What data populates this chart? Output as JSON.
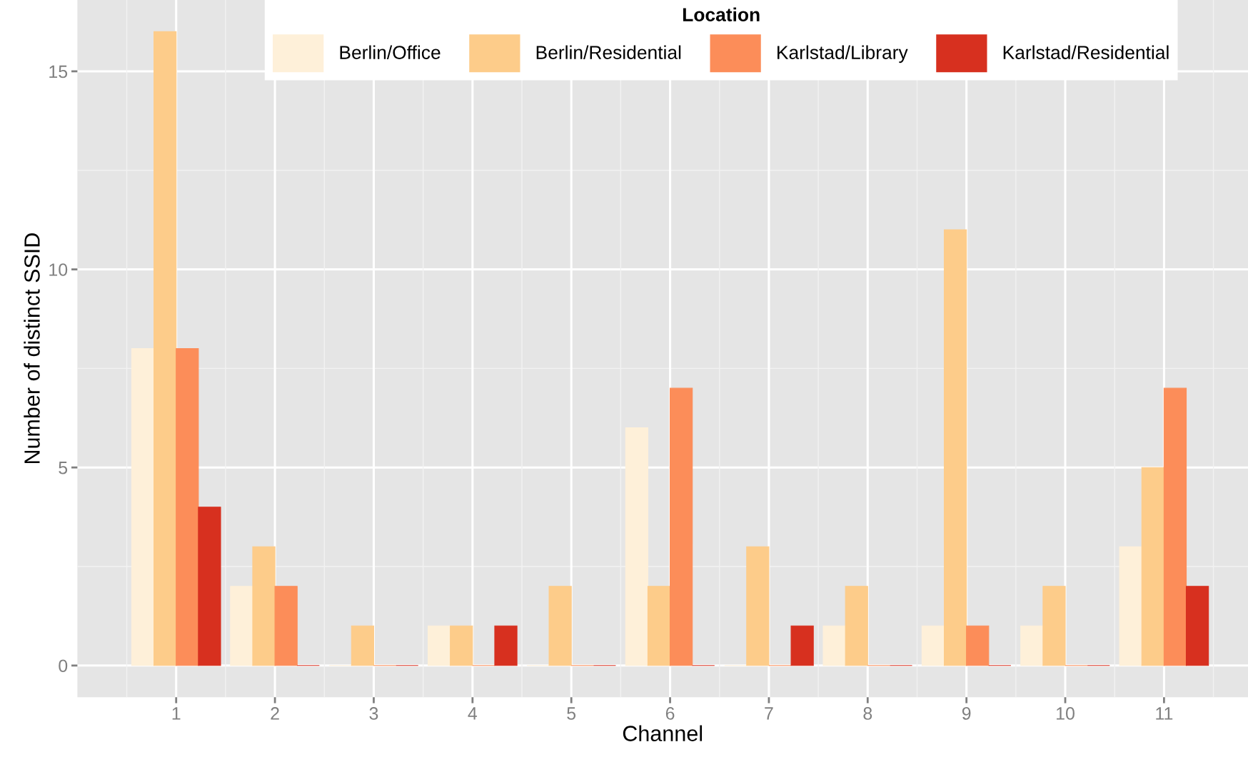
{
  "chart_data": {
    "type": "bar",
    "xlabel": "Channel",
    "ylabel": "Number of distinct SSID",
    "legend_title": "Location",
    "legend": "top",
    "categories": [
      "1",
      "2",
      "3",
      "4",
      "5",
      "6",
      "7",
      "8",
      "9",
      "10",
      "11"
    ],
    "series": [
      {
        "name": "Berlin/Office",
        "color": "#fef0d9",
        "values": [
          8,
          2,
          0,
          1,
          0,
          6,
          0,
          1,
          1,
          1,
          3
        ]
      },
      {
        "name": "Berlin/Residential",
        "color": "#fdcc8a",
        "values": [
          16,
          3,
          1,
          1,
          2,
          2,
          3,
          2,
          11,
          2,
          5
        ]
      },
      {
        "name": "Karlstad/Library",
        "color": "#fc8d59",
        "values": [
          8,
          2,
          0,
          0,
          0,
          7,
          0,
          0,
          1,
          0,
          7
        ]
      },
      {
        "name": "Karlstad/Residential",
        "color": "#d7301f",
        "values": [
          4,
          0,
          0,
          1,
          0,
          0,
          1,
          0,
          0,
          0,
          2
        ]
      }
    ],
    "ylim": [
      -0.8,
      16.8
    ],
    "yticks": [
      0,
      5,
      10,
      15
    ],
    "grid": true
  }
}
